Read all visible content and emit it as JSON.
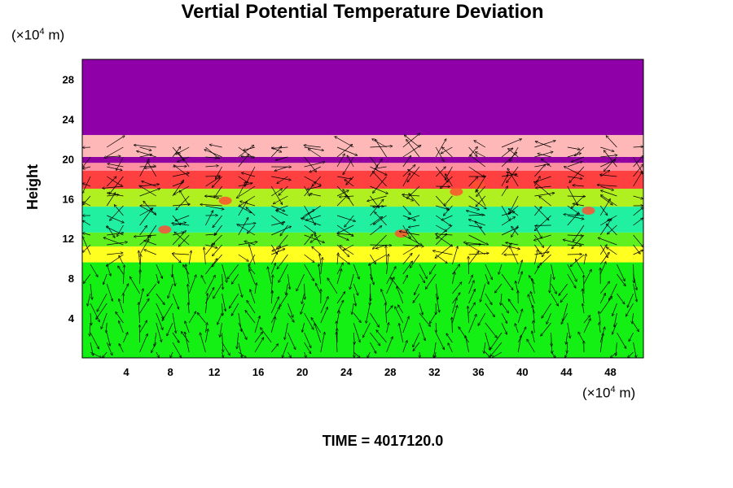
{
  "chart_data": {
    "type": "heatmap",
    "title": "Vertial Potential Temperature Deviation",
    "ylabel": "Height",
    "x_unit": "(×10",
    "x_unit_exp": "4",
    "x_unit_tail": " m)",
    "y_unit": "(×10",
    "y_unit_exp": "4",
    "y_unit_tail": " m)",
    "xlim": [
      0,
      51
    ],
    "ylim": [
      0,
      30
    ],
    "x_ticks": [
      4,
      8,
      12,
      16,
      20,
      24,
      28,
      32,
      36,
      40,
      44,
      48
    ],
    "y_ticks": [
      4,
      8,
      12,
      16,
      20,
      24,
      28
    ],
    "layers": [
      {
        "from": 0,
        "to": 9.6,
        "color": "#14f014"
      },
      {
        "from": 9.6,
        "to": 11.2,
        "color": "#ffff20"
      },
      {
        "from": 11.2,
        "to": 12.6,
        "color": "#60f020"
      },
      {
        "from": 12.6,
        "to": 15.2,
        "color": "#20f0a0"
      },
      {
        "from": 15.2,
        "to": 17.0,
        "color": "#b0f020"
      },
      {
        "from": 17.0,
        "to": 18.8,
        "color": "#ff4040"
      },
      {
        "from": 18.8,
        "to": 19.6,
        "color": "#ff90a0"
      },
      {
        "from": 19.6,
        "to": 20.2,
        "color": "#9000a0"
      },
      {
        "from": 20.2,
        "to": 22.4,
        "color": "#ffb8b8"
      },
      {
        "from": 22.4,
        "to": 30,
        "color": "#9000a8"
      }
    ],
    "grid": false
  },
  "footer": {
    "time_label": "TIME = 4017120.0"
  }
}
